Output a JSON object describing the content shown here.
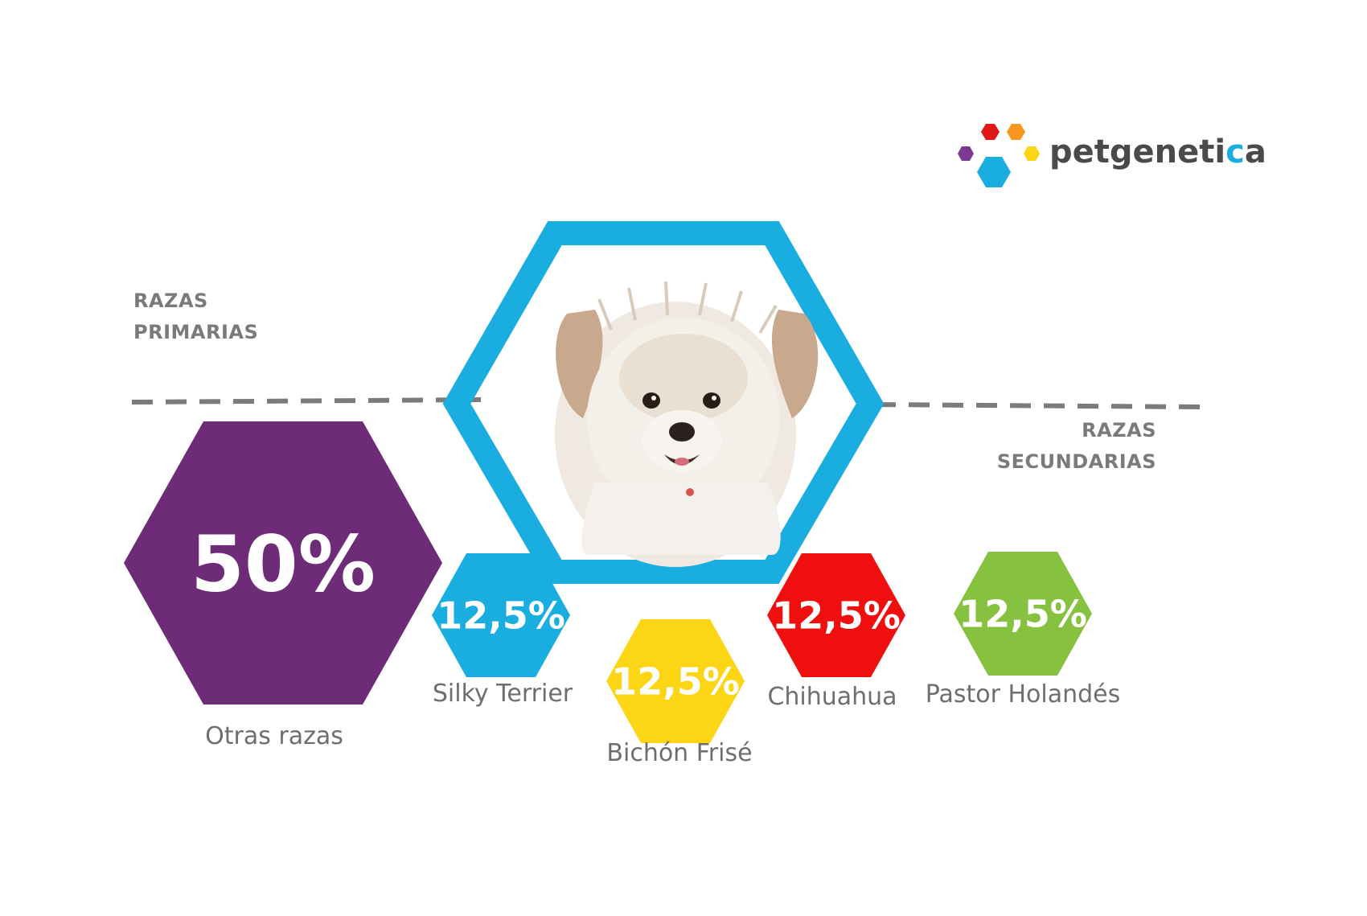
{
  "brand": {
    "name_start": "petgeneti",
    "name_accent": "c",
    "name_end": "a"
  },
  "sections": {
    "primary": [
      "RAZAS",
      "PRIMARIAS"
    ],
    "secondary": [
      "RAZAS",
      "SECUNDARIAS"
    ]
  },
  "colors": {
    "purple": "#6d2b78",
    "blue": "#1aaee0",
    "yellow": "#fcd615",
    "red": "#f00f0f",
    "green": "#86c140",
    "orange": "#f5961e",
    "label_gray": "#6e6e6e",
    "dash_gray": "#7b7b7b"
  },
  "chart_data": {
    "type": "hexagon-breakdown",
    "title": "",
    "unit": "%",
    "categories": [
      "Otras razas",
      "Silky Terrier",
      "Bichón Frisé",
      "Chihuahua",
      "Pastor Holandés"
    ],
    "values": [
      50,
      12.5,
      12.5,
      12.5,
      12.5
    ],
    "value_labels": [
      "50%",
      "12,5%",
      "12,5%",
      "12,5%",
      "12,5%"
    ],
    "colors": [
      "#6d2b78",
      "#1aaee0",
      "#fcd615",
      "#f00f0f",
      "#86c140"
    ]
  }
}
